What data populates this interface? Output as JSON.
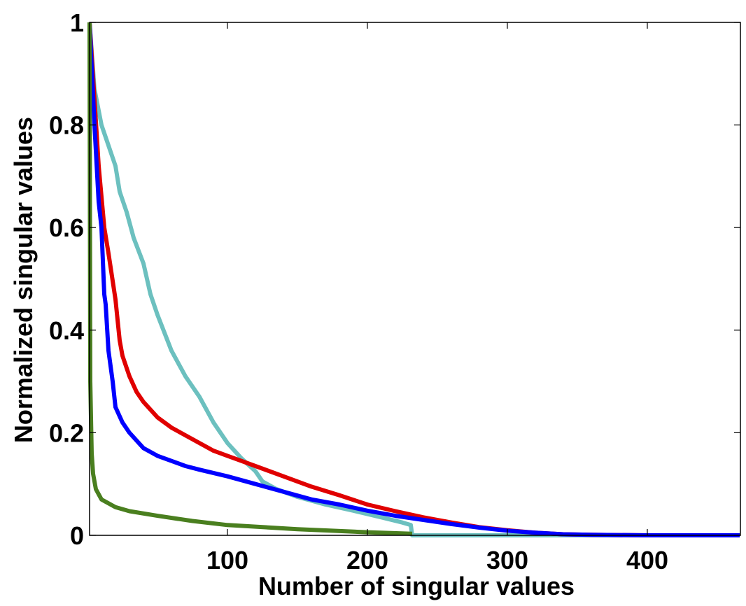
{
  "chart_data": {
    "type": "line",
    "title": "",
    "xlabel": "Number of singular values",
    "ylabel": "Normalized singular values",
    "xlim": [
      1,
      466
    ],
    "ylim": [
      0,
      1
    ],
    "xticks": [
      100,
      200,
      300,
      400
    ],
    "xtick_labels": [
      "100",
      "200",
      "300",
      "400"
    ],
    "yticks": [
      0,
      0.2,
      0.4,
      0.6,
      0.8,
      1
    ],
    "ytick_labels": [
      "0",
      "0.2",
      "0.4",
      "0.6",
      "0.8",
      "1"
    ],
    "grid": false,
    "legend": null,
    "series": [
      {
        "name": "cyan",
        "color": "#6cc0bf",
        "x": [
          1,
          5,
          10,
          15,
          20,
          23,
          28,
          33,
          40,
          45,
          50,
          60,
          70,
          80,
          90,
          100,
          110,
          120,
          125,
          135,
          150,
          170,
          190,
          210,
          225,
          231,
          232,
          466
        ],
        "y": [
          1.0,
          0.87,
          0.8,
          0.76,
          0.72,
          0.67,
          0.63,
          0.58,
          0.53,
          0.47,
          0.43,
          0.36,
          0.31,
          0.27,
          0.22,
          0.18,
          0.15,
          0.125,
          0.105,
          0.09,
          0.075,
          0.06,
          0.048,
          0.035,
          0.025,
          0.02,
          0.0,
          0.0
        ]
      },
      {
        "name": "red",
        "color": "#e00000",
        "x": [
          1,
          5,
          8,
          12,
          15,
          20,
          23,
          25,
          30,
          35,
          40,
          50,
          60,
          70,
          80,
          90,
          100,
          110,
          120,
          140,
          160,
          180,
          200,
          220,
          240,
          260,
          280,
          300,
          320,
          340,
          360,
          400,
          466
        ],
        "y": [
          1.0,
          0.85,
          0.72,
          0.6,
          0.55,
          0.46,
          0.38,
          0.35,
          0.31,
          0.28,
          0.26,
          0.23,
          0.21,
          0.195,
          0.18,
          0.165,
          0.155,
          0.145,
          0.135,
          0.115,
          0.095,
          0.078,
          0.06,
          0.047,
          0.035,
          0.025,
          0.016,
          0.01,
          0.005,
          0.002,
          0.001,
          0.0,
          0.0
        ]
      },
      {
        "name": "blue",
        "color": "#0000ff",
        "x": [
          1,
          5,
          8,
          10,
          12,
          13,
          15,
          18,
          20,
          25,
          30,
          40,
          50,
          60,
          70,
          80,
          100,
          120,
          140,
          160,
          180,
          200,
          220,
          240,
          260,
          280,
          300,
          320,
          340,
          360,
          400,
          466
        ],
        "y": [
          1.0,
          0.8,
          0.65,
          0.6,
          0.47,
          0.45,
          0.36,
          0.3,
          0.25,
          0.22,
          0.2,
          0.17,
          0.155,
          0.145,
          0.135,
          0.128,
          0.115,
          0.1,
          0.085,
          0.07,
          0.06,
          0.048,
          0.038,
          0.03,
          0.022,
          0.015,
          0.009,
          0.005,
          0.002,
          0.001,
          0.0,
          0.0
        ]
      },
      {
        "name": "green",
        "color": "#4a7f1f",
        "x": [
          1,
          2,
          3,
          4,
          6,
          10,
          20,
          30,
          50,
          75,
          100,
          150,
          200,
          232
        ],
        "y": [
          1.0,
          0.3,
          0.16,
          0.12,
          0.09,
          0.07,
          0.055,
          0.047,
          0.038,
          0.028,
          0.02,
          0.012,
          0.006,
          0.003
        ]
      }
    ]
  }
}
